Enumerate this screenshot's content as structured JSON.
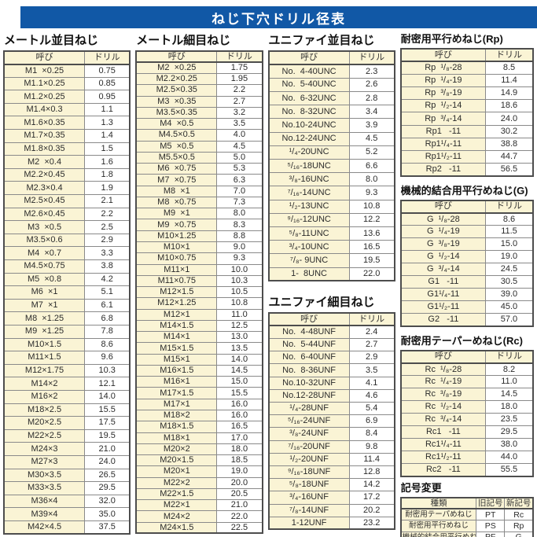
{
  "page": {
    "title": "ねじ下穴ドリル径表"
  },
  "colors": {
    "header_bar": "#1158a6",
    "cell_cream": "#faf4d5"
  },
  "col_headers": {
    "name": "呼び",
    "drill": "ドリル"
  },
  "tables": {
    "metric_coarse": {
      "title": "メートル並目ねじ",
      "rows": [
        [
          "M1  ×0.25",
          "0.75"
        ],
        [
          "M1.1×0.25",
          "0.85"
        ],
        [
          "M1.2×0.25",
          "0.95"
        ],
        [
          "M1.4×0.3",
          "1.1"
        ],
        [
          "M1.6×0.35",
          "1.3"
        ],
        [
          "M1.7×0.35",
          "1.4"
        ],
        [
          "M1.8×0.35",
          "1.5"
        ],
        [
          "M2  ×0.4",
          "1.6"
        ],
        [
          "M2.2×0.45",
          "1.8"
        ],
        [
          "M2.3×0.4",
          "1.9"
        ],
        [
          "M2.5×0.45",
          "2.1"
        ],
        [
          "M2.6×0.45",
          "2.2"
        ],
        [
          "M3  ×0.5",
          "2.5"
        ],
        [
          "M3.5×0.6",
          "2.9"
        ],
        [
          "M4  ×0.7",
          "3.3"
        ],
        [
          "M4.5×0.75",
          "3.8"
        ],
        [
          "M5  ×0.8",
          "4.2"
        ],
        [
          "M6  ×1",
          "5.1"
        ],
        [
          "M7  ×1",
          "6.1"
        ],
        [
          "M8  ×1.25",
          "6.8"
        ],
        [
          "M9  ×1.25",
          "7.8"
        ],
        [
          "M10×1.5",
          "8.6"
        ],
        [
          "M11×1.5",
          "9.6"
        ],
        [
          "M12×1.75",
          "10.3"
        ],
        [
          "M14×2",
          "12.1"
        ],
        [
          "M16×2",
          "14.0"
        ],
        [
          "M18×2.5",
          "15.5"
        ],
        [
          "M20×2.5",
          "17.5"
        ],
        [
          "M22×2.5",
          "19.5"
        ],
        [
          "M24×3",
          "21.0"
        ],
        [
          "M27×3",
          "24.0"
        ],
        [
          "M30×3.5",
          "26.5"
        ],
        [
          "M33×3.5",
          "29.5"
        ],
        [
          "M36×4",
          "32.0"
        ],
        [
          "M39×4",
          "35.0"
        ],
        [
          "M42×4.5",
          "37.5"
        ]
      ]
    },
    "metric_fine": {
      "title": "メートル細目ねじ",
      "rows": [
        [
          "M2  ×0.25",
          "1.75"
        ],
        [
          "M2.2×0.25",
          "1.95"
        ],
        [
          "M2.5×0.35",
          "2.2"
        ],
        [
          "M3  ×0.35",
          "2.7"
        ],
        [
          "M3.5×0.35",
          "3.2"
        ],
        [
          "M4  ×0.5",
          "3.5"
        ],
        [
          "M4.5×0.5",
          "4.0"
        ],
        [
          "M5  ×0.5",
          "4.5"
        ],
        [
          "M5.5×0.5",
          "5.0"
        ],
        [
          "M6  ×0.75",
          "5.3"
        ],
        [
          "M7  ×0.75",
          "6.3"
        ],
        [
          "M8  ×1",
          "7.0"
        ],
        [
          "M8  ×0.75",
          "7.3"
        ],
        [
          "M9  ×1",
          "8.0"
        ],
        [
          "M9  ×0.75",
          "8.3"
        ],
        [
          "M10×1.25",
          "8.8"
        ],
        [
          "M10×1",
          "9.0"
        ],
        [
          "M10×0.75",
          "9.3"
        ],
        [
          "M11×1",
          "10.0"
        ],
        [
          "M11×0.75",
          "10.3"
        ],
        [
          "M12×1.5",
          "10.5"
        ],
        [
          "M12×1.25",
          "10.8"
        ],
        [
          "M12×1",
          "11.0"
        ],
        [
          "M14×1.5",
          "12.5"
        ],
        [
          "M14×1",
          "13.0"
        ],
        [
          "M15×1.5",
          "13.5"
        ],
        [
          "M15×1",
          "14.0"
        ],
        [
          "M16×1.5",
          "14.5"
        ],
        [
          "M16×1",
          "15.0"
        ],
        [
          "M17×1.5",
          "15.5"
        ],
        [
          "M17×1",
          "16.0"
        ],
        [
          "M18×2",
          "16.0"
        ],
        [
          "M18×1.5",
          "16.5"
        ],
        [
          "M18×1",
          "17.0"
        ],
        [
          "M20×2",
          "18.0"
        ],
        [
          "M20×1.5",
          "18.5"
        ],
        [
          "M20×1",
          "19.0"
        ],
        [
          "M22×2",
          "20.0"
        ],
        [
          "M22×1.5",
          "20.5"
        ],
        [
          "M22×1",
          "21.0"
        ],
        [
          "M24×2",
          "22.0"
        ],
        [
          "M24×1.5",
          "22.5"
        ]
      ]
    },
    "unified_coarse": {
      "title": "ユニファイ並目ねじ",
      "rows": [
        [
          "No.  4-40UNC",
          "2.3"
        ],
        [
          "No.  5-40UNC",
          "2.6"
        ],
        [
          "No.  6-32UNC",
          "2.8"
        ],
        [
          "No.  8-32UNC",
          "3.4"
        ],
        [
          "No.10-24UNC",
          "3.9"
        ],
        [
          "No.12-24UNC",
          "4.5"
        ],
        [
          "¹/₄-20UNC",
          "5.2"
        ],
        [
          "⁵/₁₆-18UNC",
          "6.6"
        ],
        [
          "³/₈-16UNC",
          "8.0"
        ],
        [
          "⁷/₁₆-14UNC",
          "9.3"
        ],
        [
          "¹/₂-13UNC",
          "10.8"
        ],
        [
          "⁹/₁₆-12UNC",
          "12.2"
        ],
        [
          "⁵/₈-11UNC",
          "13.6"
        ],
        [
          "³/₄-10UNC",
          "16.5"
        ],
        [
          "⁷/₈- 9UNC",
          "19.5"
        ],
        [
          "1-  8UNC",
          "22.0"
        ]
      ]
    },
    "unified_fine": {
      "title": "ユニファイ細目ねじ",
      "rows": [
        [
          "No.  4-48UNF",
          "2.4"
        ],
        [
          "No.  5-44UNF",
          "2.7"
        ],
        [
          "No.  6-40UNF",
          "2.9"
        ],
        [
          "No.  8-36UNF",
          "3.5"
        ],
        [
          "No.10-32UNF",
          "4.1"
        ],
        [
          "No.12-28UNF",
          "4.6"
        ],
        [
          "¹/₄-28UNF",
          "5.4"
        ],
        [
          "⁵/₁₆-24UNF",
          "6.9"
        ],
        [
          "³/₈-24UNF",
          "8.4"
        ],
        [
          "⁷/₁₆-20UNF",
          "9.8"
        ],
        [
          "¹/₂-20UNF",
          "11.4"
        ],
        [
          "⁹/₁₆-18UNF",
          "12.8"
        ],
        [
          "⁵/₈-18UNF",
          "14.2"
        ],
        [
          "³/₄-16UNF",
          "17.2"
        ],
        [
          "⁷/₈-14UNF",
          "20.2"
        ],
        [
          "1-12UNF",
          "23.2"
        ]
      ]
    },
    "rp": {
      "title": "耐密用平行めねじ(Rp)",
      "rows": [
        [
          "Rp  ¹/₈-28",
          "8.5"
        ],
        [
          "Rp  ¹/₄-19",
          "11.4"
        ],
        [
          "Rp  ³/₈-19",
          "14.9"
        ],
        [
          "Rp  ¹/₂-14",
          "18.6"
        ],
        [
          "Rp  ³/₄-14",
          "24.0"
        ],
        [
          "Rp1   -11",
          "30.2"
        ],
        [
          "Rp1¹/₄-11",
          "38.8"
        ],
        [
          "Rp1¹/₂-11",
          "44.7"
        ],
        [
          "Rp2   -11",
          "56.5"
        ]
      ]
    },
    "g": {
      "title": "機械的結合用平行めねじ(G)",
      "rows": [
        [
          "G  ¹/₈-28",
          "8.6"
        ],
        [
          "G  ¹/₄-19",
          "11.5"
        ],
        [
          "G  ³/₈-19",
          "15.0"
        ],
        [
          "G  ¹/₂-14",
          "19.0"
        ],
        [
          "G  ³/₄-14",
          "24.5"
        ],
        [
          "G1   -11",
          "30.5"
        ],
        [
          "G1¹/₄-11",
          "39.0"
        ],
        [
          "G1¹/₂-11",
          "45.0"
        ],
        [
          "G2   -11",
          "57.0"
        ]
      ]
    },
    "rc": {
      "title": "耐密用テーパーめねじ(Rc)",
      "rows": [
        [
          "Rc  ¹/₈-28",
          "8.2"
        ],
        [
          "Rc  ¹/₄-19",
          "11.0"
        ],
        [
          "Rc  ³/₈-19",
          "14.5"
        ],
        [
          "Rc  ¹/₂-14",
          "18.0"
        ],
        [
          "Rc  ³/₄-14",
          "23.5"
        ],
        [
          "Rc1   -11",
          "29.5"
        ],
        [
          "Rc1¹/₄-11",
          "38.0"
        ],
        [
          "Rc1¹/₂-11",
          "44.0"
        ],
        [
          "Rc2   -11",
          "55.5"
        ]
      ]
    },
    "symbol_change": {
      "title": "記号変更",
      "headers": [
        "種類",
        "旧記号",
        "新記号"
      ],
      "rows": [
        [
          "耐密用テーパめねじ",
          "PT",
          "Rc"
        ],
        [
          "耐密用平行めねじ",
          "PS",
          "Rp"
        ],
        [
          "機械的結合用平行めねじ",
          "PF",
          "G"
        ]
      ]
    }
  }
}
